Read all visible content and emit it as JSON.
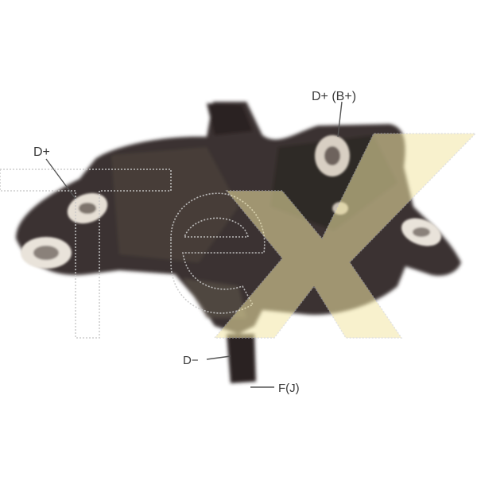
{
  "labels": {
    "dplus_bplus": "D+ (B+)",
    "dplus": "D+",
    "dminus": "D−",
    "df": "F(J)"
  },
  "watermark": {
    "text": "Tex",
    "colors": {
      "outline": "#c9c9c9",
      "x_fill": "#f3e7a6"
    }
  },
  "colors": {
    "body": "#3b3330",
    "body_light": "#5a4e48",
    "terminal": "#e9e3da",
    "leader": "#555555"
  }
}
